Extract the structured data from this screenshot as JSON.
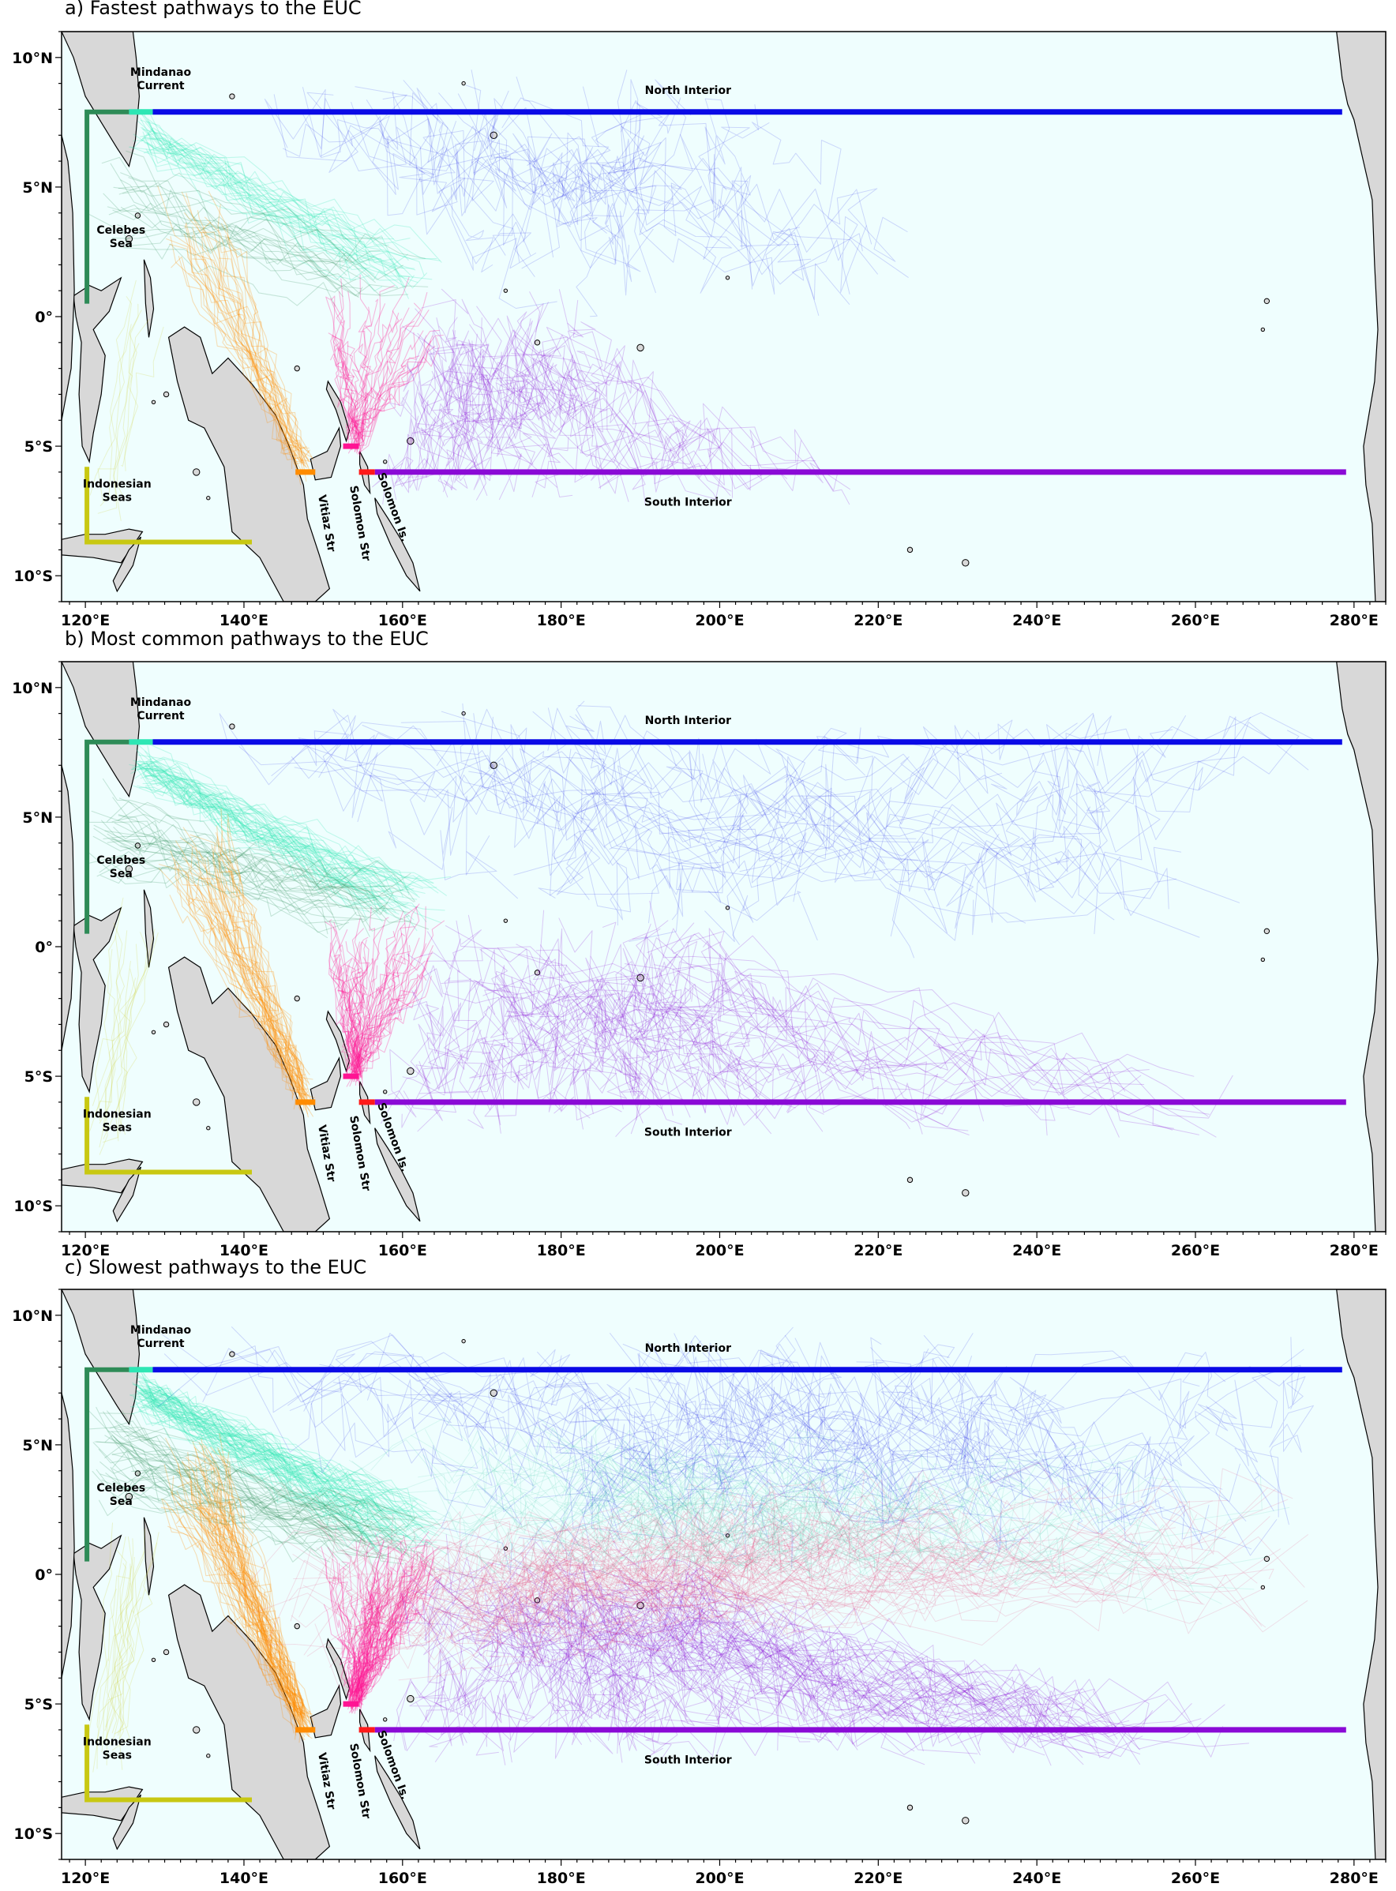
{
  "panels": [
    {
      "title": "a) Fastest pathways to the EUC",
      "density": 0.45,
      "extent": 0.55
    },
    {
      "title": "b) Most common pathways to the EUC",
      "density": 0.7,
      "extent": 1.0
    },
    {
      "title": "c) Slowest pathways to the EUC",
      "density": 1.0,
      "extent": 1.0
    }
  ],
  "axes": {
    "xlim": [
      117,
      284
    ],
    "ylim": [
      -11,
      11
    ],
    "xticks": [
      120,
      140,
      160,
      180,
      200,
      220,
      240,
      260,
      280
    ],
    "xtick_labels": [
      "120°E",
      "140°E",
      "160°E",
      "180°E",
      "200°E",
      "220°E",
      "240°E",
      "260°E",
      "280°E"
    ],
    "yticks": [
      10,
      5,
      0,
      -5,
      -10
    ],
    "ytick_labels": [
      "10°N",
      "5°N",
      "0°",
      "5°S",
      "10°S"
    ]
  },
  "region_labels": {
    "mindanao": "Mindanao\nCurrent",
    "celebes": "Celebes\nSea",
    "indonesian": "Indonesian\nSeas",
    "north_interior": "North Interior",
    "south_interior": "South Interior",
    "vitiaz": "Vitiaz Str",
    "solomon_str": "Solomon Str",
    "solomon_is": "Solomon Is."
  },
  "colors": {
    "ocean": "#effefe",
    "land": "#d8d8d8",
    "north_interior": "#0a0ae6",
    "south_interior": "#8a0ad6",
    "mindanao": "#2ee6b4",
    "celebes": "#2e8b57",
    "indonesian": "#c8c812",
    "vitiaz": "#ff8c00",
    "solomon_str": "#ff1493",
    "solomon_is": "#ff1a1a"
  },
  "chart_data": {
    "type": "map",
    "series": [
      {
        "name": "North Interior",
        "line": {
          "lat": 7.9,
          "lon": [
            128.5,
            278.5
          ]
        }
      },
      {
        "name": "South Interior",
        "line": {
          "lat": -6.0,
          "lon": [
            156.5,
            279
          ]
        }
      },
      {
        "name": "Mindanao Current",
        "line": {
          "lat": 7.9,
          "lon": [
            125.5,
            128.5
          ]
        }
      },
      {
        "name": "Celebes Sea",
        "line": {
          "lon": 120.2,
          "lat": [
            0.5,
            7.9
          ]
        }
      },
      {
        "name": "Indonesian Seas",
        "line": {
          "lon": 120.2,
          "lat": [
            -8.7,
            -5.8
          ]
        }
      },
      {
        "name": "Vitiaz Str",
        "line": {
          "lat": -6.0,
          "lon": [
            146.5,
            149
          ]
        }
      },
      {
        "name": "Solomon Str",
        "line": {
          "lat": -5.0,
          "lon": [
            152.5,
            154.5
          ]
        }
      },
      {
        "name": "Solomon Is.",
        "line": {
          "lat": -6.0,
          "lon": [
            154.5,
            156.5
          ]
        }
      }
    ]
  }
}
